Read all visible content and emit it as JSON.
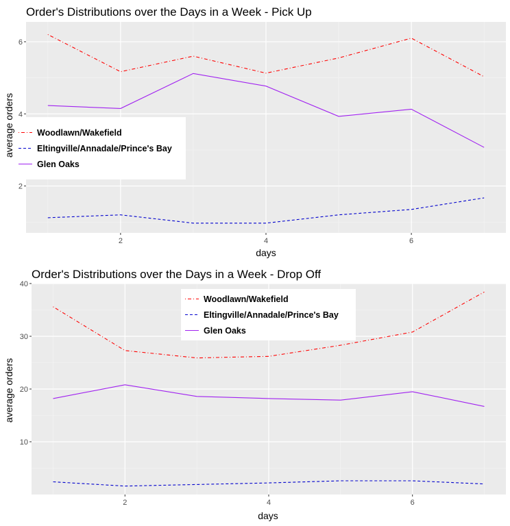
{
  "chart_data": [
    {
      "type": "line",
      "title": "Order's Distributions over the Days in a Week - Pick Up",
      "xlabel": "days",
      "ylabel": "average orders",
      "xlim": [
        0.7,
        7.3
      ],
      "ylim": [
        0.7,
        6.55
      ],
      "xticks": [
        2,
        4,
        6
      ],
      "yticks": [
        2,
        4,
        6
      ],
      "grid": true,
      "legend_position": "left",
      "x": [
        1,
        2,
        3,
        4,
        5,
        6,
        7
      ],
      "series": [
        {
          "name": "Woodlawn/Wakefield",
          "color": "#ff0000",
          "linetype": "dotdash",
          "values": [
            6.2,
            5.17,
            5.6,
            5.13,
            5.55,
            6.1,
            5.03
          ]
        },
        {
          "name": "Eltingville/Annadale/Prince's Bay",
          "color": "#0000cd",
          "linetype": "dashed",
          "values": [
            1.12,
            1.2,
            0.97,
            0.97,
            1.2,
            1.35,
            1.67
          ]
        },
        {
          "name": "Glen Oaks",
          "color": "#a020f0",
          "linetype": "solid",
          "values": [
            4.23,
            4.15,
            5.12,
            4.77,
            3.93,
            4.13,
            3.07
          ]
        }
      ]
    },
    {
      "type": "line",
      "title": "Order's Distributions over the Days in a Week - Drop Off",
      "xlabel": "days",
      "ylabel": "average orders",
      "xlim": [
        0.7,
        7.3
      ],
      "ylim": [
        0,
        40
      ],
      "xticks": [
        2,
        4,
        6
      ],
      "yticks": [
        10,
        20,
        30,
        40
      ],
      "grid": true,
      "legend_position": "top-center",
      "x": [
        1,
        2,
        3,
        4,
        5,
        6,
        7
      ],
      "series": [
        {
          "name": "Woodlawn/Wakefield",
          "color": "#ff0000",
          "linetype": "dotdash",
          "values": [
            35.6,
            27.3,
            25.9,
            26.2,
            28.3,
            30.8,
            38.4
          ]
        },
        {
          "name": "Eltingville/Annadale/Prince's Bay",
          "color": "#0000cd",
          "linetype": "dashed",
          "values": [
            2.4,
            1.6,
            1.9,
            2.2,
            2.6,
            2.6,
            2.0
          ]
        },
        {
          "name": "Glen Oaks",
          "color": "#a020f0",
          "linetype": "solid",
          "values": [
            18.2,
            20.8,
            18.6,
            18.2,
            17.9,
            19.5,
            16.7
          ]
        }
      ]
    }
  ]
}
